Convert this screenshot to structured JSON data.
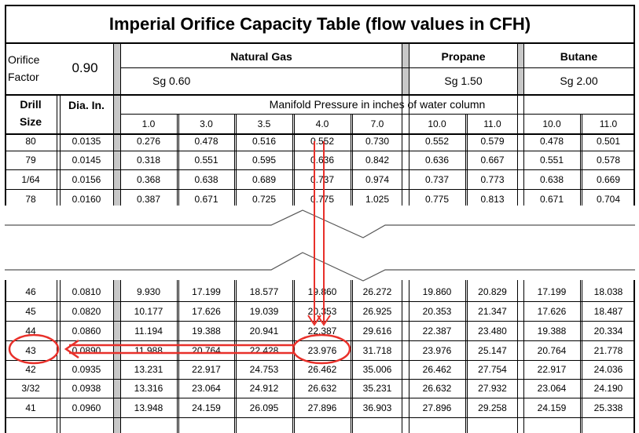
{
  "title": "Imperial Orifice Capacity Table (flow values in CFH)",
  "orifice_factor": {
    "label_line1": "Orifice",
    "label_line2": "Factor",
    "value": "0.90"
  },
  "groups": [
    {
      "name": "Natural Gas",
      "sg_label": "Sg",
      "sg_value": "0.60"
    },
    {
      "name": "Propane",
      "sg_label": "Sg",
      "sg_value": "1.50"
    },
    {
      "name": "Butane",
      "sg_label": "Sg",
      "sg_value": "2.00"
    }
  ],
  "col_drill_line1": "Drill",
  "col_drill_line2": "Size",
  "col_dia": "Dia. In.",
  "manifold_label": "Manifold Pressure in inches of water column",
  "pressures": [
    "1.0",
    "3.0",
    "3.5",
    "4.0",
    "7.0",
    "10.0",
    "11.0",
    "10.0",
    "11.0"
  ],
  "rows_top": [
    [
      "80",
      "0.0135",
      "0.276",
      "0.478",
      "0.516",
      "0.552",
      "0.730",
      "0.552",
      "0.579",
      "0.478",
      "0.501"
    ],
    [
      "79",
      "0.0145",
      "0.318",
      "0.551",
      "0.595",
      "0.636",
      "0.842",
      "0.636",
      "0.667",
      "0.551",
      "0.578"
    ],
    [
      "1/64",
      "0.0156",
      "0.368",
      "0.638",
      "0.689",
      "0.737",
      "0.974",
      "0.737",
      "0.773",
      "0.638",
      "0.669"
    ],
    [
      "78",
      "0.0160",
      "0.387",
      "0.671",
      "0.725",
      "0.775",
      "1.025",
      "0.775",
      "0.813",
      "0.671",
      "0.704"
    ]
  ],
  "rows_bottom": [
    [
      "46",
      "0.0810",
      "9.930",
      "17.199",
      "18.577",
      "19.860",
      "26.272",
      "19.860",
      "20.829",
      "17.199",
      "18.038"
    ],
    [
      "45",
      "0.0820",
      "10.177",
      "17.626",
      "19.039",
      "20.353",
      "26.925",
      "20.353",
      "21.347",
      "17.626",
      "18.487"
    ],
    [
      "44",
      "0.0860",
      "11.194",
      "19.388",
      "20.941",
      "22.387",
      "29.616",
      "22.387",
      "23.480",
      "19.388",
      "20.334"
    ],
    [
      "43",
      "0.0890",
      "11.988",
      "20.764",
      "22.428",
      "23.976",
      "31.718",
      "23.976",
      "25.147",
      "20.764",
      "21.778"
    ],
    [
      "42",
      "0.0935",
      "13.231",
      "22.917",
      "24.753",
      "26.462",
      "35.006",
      "26.462",
      "27.754",
      "22.917",
      "24.036"
    ],
    [
      "3/32",
      "0.0938",
      "13.316",
      "23.064",
      "24.912",
      "26.632",
      "35.231",
      "26.632",
      "27.932",
      "23.064",
      "24.190"
    ],
    [
      "41",
      "0.0960",
      "13.948",
      "24.159",
      "26.095",
      "27.896",
      "36.903",
      "27.896",
      "29.258",
      "24.159",
      "25.338"
    ]
  ],
  "colors": {
    "highlight": "#e8302a",
    "grid": "#000000",
    "gray_bar": "#c8c8c8"
  }
}
